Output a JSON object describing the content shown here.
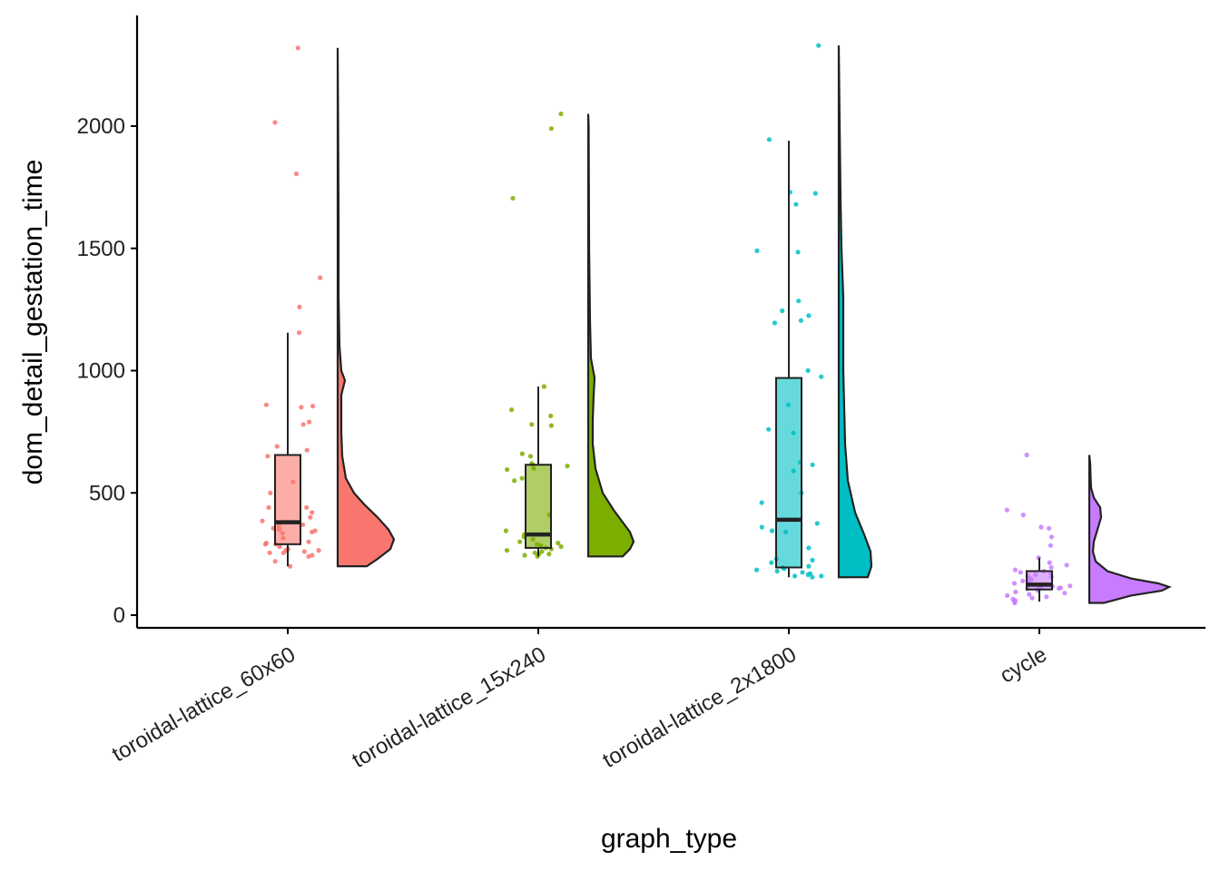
{
  "chart_data": {
    "type": "raincloud",
    "title": "",
    "xlabel": "graph_type",
    "ylabel": "dom_detail_gestation_time",
    "ylim": [
      -50,
      2420
    ],
    "y_ticks": [
      0,
      500,
      1000,
      1500,
      2000
    ],
    "grid": false,
    "legend": "none",
    "categories": [
      {
        "name": "toroidal-lattice_60x60",
        "color": "#F8766D",
        "box": {
          "lower_whisker": 200,
          "q1": 290,
          "median": 380,
          "q3": 655,
          "upper_whisker": 1155
        },
        "violin": {
          "min": 200,
          "max": 2320,
          "profile": [
            [
              200,
              0.32
            ],
            [
              230,
              0.44
            ],
            [
              270,
              0.58
            ],
            [
              310,
              0.62
            ],
            [
              350,
              0.56
            ],
            [
              400,
              0.44
            ],
            [
              450,
              0.3
            ],
            [
              500,
              0.18
            ],
            [
              560,
              0.09
            ],
            [
              650,
              0.05
            ],
            [
              750,
              0.04
            ],
            [
              900,
              0.04
            ],
            [
              960,
              0.08
            ],
            [
              1000,
              0.04
            ],
            [
              1100,
              0.02
            ],
            [
              1300,
              0.01
            ],
            [
              1600,
              0.01
            ],
            [
              2000,
              0.005
            ],
            [
              2320,
              0
            ]
          ]
        },
        "points": [
          2320,
          2015,
          1805,
          1380,
          1260,
          1155,
          860,
          855,
          850,
          790,
          780,
          690,
          675,
          650,
          545,
          500,
          440,
          440,
          420,
          400,
          385,
          380,
          370,
          365,
          355,
          350,
          345,
          340,
          335,
          315,
          300,
          295,
          290,
          290,
          280,
          270,
          265,
          265,
          260,
          255,
          255,
          245,
          240,
          220,
          200
        ]
      },
      {
        "name": "toroidal-lattice_15x240",
        "color": "#7CAE00",
        "box": {
          "lower_whisker": 240,
          "q1": 275,
          "median": 330,
          "q3": 615,
          "upper_whisker": 935
        },
        "violin": {
          "min": 240,
          "max": 2050,
          "profile": [
            [
              240,
              0.38
            ],
            [
              270,
              0.46
            ],
            [
              300,
              0.5
            ],
            [
              340,
              0.46
            ],
            [
              380,
              0.38
            ],
            [
              430,
              0.28
            ],
            [
              500,
              0.16
            ],
            [
              600,
              0.08
            ],
            [
              700,
              0.05
            ],
            [
              800,
              0.05
            ],
            [
              900,
              0.06
            ],
            [
              970,
              0.07
            ],
            [
              1050,
              0.03
            ],
            [
              1200,
              0.02
            ],
            [
              1500,
              0.01
            ],
            [
              2000,
              0.005
            ],
            [
              2050,
              0
            ]
          ]
        },
        "points": [
          2050,
          1990,
          1705,
          935,
          840,
          815,
          780,
          775,
          660,
          650,
          620,
          615,
          610,
          600,
          595,
          560,
          550,
          410,
          345,
          330,
          320,
          310,
          300,
          295,
          290,
          285,
          280,
          275,
          270,
          265,
          260,
          255,
          250,
          250,
          245,
          240
        ]
      },
      {
        "name": "toroidal-lattice_2x1800",
        "color": "#00BFC4",
        "box": {
          "lower_whisker": 155,
          "q1": 195,
          "median": 390,
          "q3": 970,
          "upper_whisker": 1940
        },
        "violin": {
          "min": 155,
          "max": 2330,
          "profile": [
            [
              155,
              0.32
            ],
            [
              200,
              0.36
            ],
            [
              260,
              0.35
            ],
            [
              330,
              0.28
            ],
            [
              420,
              0.18
            ],
            [
              550,
              0.1
            ],
            [
              700,
              0.07
            ],
            [
              850,
              0.06
            ],
            [
              1000,
              0.05
            ],
            [
              1200,
              0.05
            ],
            [
              1300,
              0.05
            ],
            [
              1500,
              0.03
            ],
            [
              1700,
              0.02
            ],
            [
              2000,
              0.01
            ],
            [
              2330,
              0
            ]
          ]
        },
        "points": [
          2330,
          1945,
          1730,
          1725,
          1680,
          1490,
          1485,
          1285,
          1245,
          1225,
          1205,
          1195,
          1000,
          975,
          860,
          760,
          745,
          625,
          615,
          590,
          500,
          460,
          375,
          360,
          345,
          340,
          275,
          230,
          225,
          215,
          200,
          195,
          190,
          185,
          180,
          175,
          170,
          165,
          160,
          160,
          155
        ]
      },
      {
        "name": "cycle",
        "color": "#C77CFF",
        "box": {
          "lower_whisker": 55,
          "q1": 105,
          "median": 125,
          "q3": 180,
          "upper_whisker": 235
        },
        "violin": {
          "min": 50,
          "max": 655,
          "profile": [
            [
              50,
              0.16
            ],
            [
              80,
              0.46
            ],
            [
              100,
              0.8
            ],
            [
              115,
              0.88
            ],
            [
              130,
              0.76
            ],
            [
              150,
              0.46
            ],
            [
              180,
              0.2
            ],
            [
              220,
              0.07
            ],
            [
              260,
              0.04
            ],
            [
              300,
              0.05
            ],
            [
              350,
              0.09
            ],
            [
              400,
              0.13
            ],
            [
              440,
              0.12
            ],
            [
              480,
              0.05
            ],
            [
              520,
              0.02
            ],
            [
              560,
              0.015
            ],
            [
              620,
              0.01
            ],
            [
              655,
              0
            ]
          ]
        },
        "points": [
          655,
          430,
          410,
          360,
          355,
          320,
          285,
          235,
          215,
          205,
          195,
          185,
          180,
          175,
          170,
          165,
          160,
          155,
          150,
          145,
          140,
          135,
          130,
          125,
          120,
          118,
          115,
          112,
          110,
          108,
          105,
          100,
          95,
          90,
          85,
          80,
          75,
          70,
          65,
          60,
          55,
          50
        ]
      }
    ]
  }
}
